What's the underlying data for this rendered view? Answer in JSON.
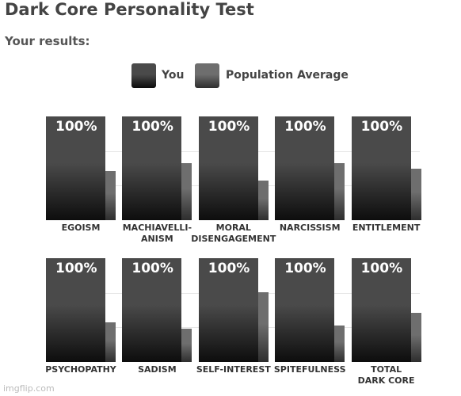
{
  "chart_data": {
    "type": "bar",
    "title": "Dark Core Personality Test",
    "subtitle": "Your results:",
    "categories": [
      "EGOISM",
      "MACHIAVELLI-\nANISM",
      "MORAL\nDISENGAGEMENT",
      "NARCISSISM",
      "ENTITLEMENT",
      "PSYCHOPATHY",
      "SADISM",
      "SELF-INTEREST",
      "SPITEFULNESS",
      "TOTAL\nDARK CORE"
    ],
    "series": [
      {
        "name": "You",
        "color": "#4a4a4a",
        "values": [
          100,
          100,
          100,
          100,
          100,
          100,
          100,
          100,
          100,
          100
        ],
        "value_labels": [
          "100%",
          "100%",
          "100%",
          "100%",
          "100%",
          "100%",
          "100%",
          "100%",
          "100%",
          "100%"
        ]
      },
      {
        "name": "Population Average",
        "color": "#6e6e6e",
        "values": [
          47,
          55,
          38,
          55,
          50,
          38,
          32,
          67,
          35,
          47
        ]
      }
    ],
    "ylim": [
      0,
      100
    ]
  },
  "watermark": "imgflip.com"
}
